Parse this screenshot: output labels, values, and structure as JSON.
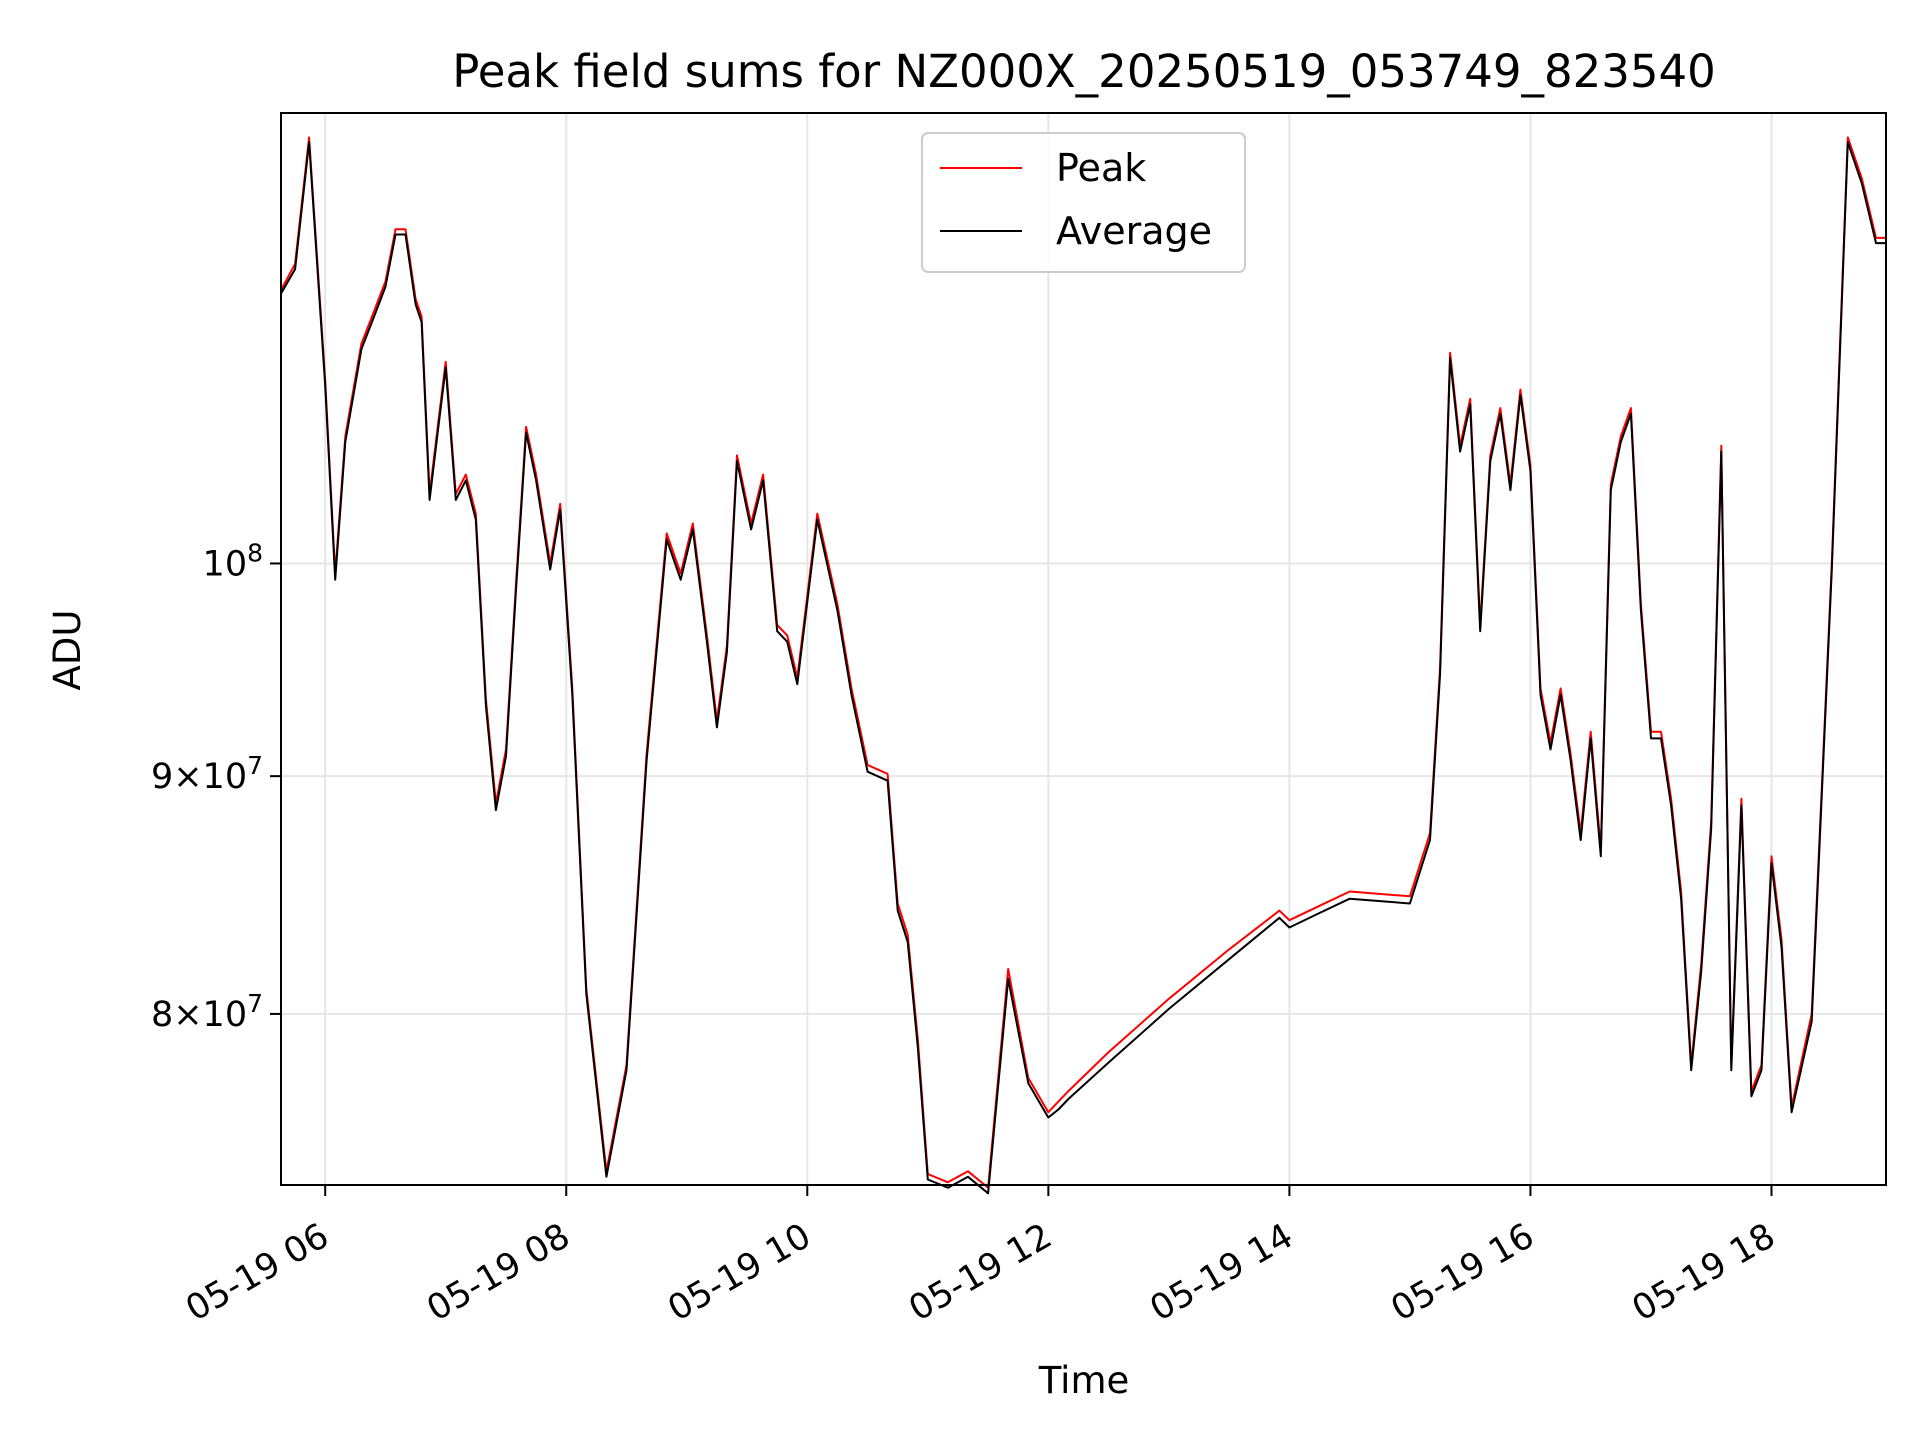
{
  "chart_data": {
    "type": "line",
    "title": "Peak field sums for NZ000X_20250519_053749_823540",
    "xlabel": "Time",
    "ylabel": "ADU",
    "x_scale": "time",
    "y_scale": "log",
    "xlim": [
      "2025-05-19 05:38",
      "2025-05-19 18:57"
    ],
    "ylim": [
      73500000,
      125000000
    ],
    "grid": true,
    "legend_position": "top-center",
    "x_tick_labels": [
      "05-19 06",
      "05-19 08",
      "05-19 10",
      "05-19 12",
      "05-19 14",
      "05-19 16",
      "05-19 18"
    ],
    "x_tick_values": [
      "2025-05-19 06:00",
      "2025-05-19 08:00",
      "2025-05-19 10:00",
      "2025-05-19 12:00",
      "2025-05-19 14:00",
      "2025-05-19 16:00",
      "2025-05-19 18:00"
    ],
    "y_ticks": [
      {
        "value": 80000000,
        "mantissa": "8",
        "exp": "7"
      },
      {
        "value": 90000000,
        "mantissa": "9",
        "exp": "7"
      },
      {
        "value": 100000000,
        "mantissa": "",
        "exp": "8"
      }
    ],
    "x": [
      "2025-05-19 05:38",
      "2025-05-19 05:45",
      "2025-05-19 05:52",
      "2025-05-19 06:00",
      "2025-05-19 06:05",
      "2025-05-19 06:10",
      "2025-05-19 06:18",
      "2025-05-19 06:25",
      "2025-05-19 06:30",
      "2025-05-19 06:35",
      "2025-05-19 06:40",
      "2025-05-19 06:45",
      "2025-05-19 06:48",
      "2025-05-19 06:52",
      "2025-05-19 06:56",
      "2025-05-19 07:00",
      "2025-05-19 07:05",
      "2025-05-19 07:10",
      "2025-05-19 07:15",
      "2025-05-19 07:20",
      "2025-05-19 07:25",
      "2025-05-19 07:30",
      "2025-05-19 07:35",
      "2025-05-19 07:40",
      "2025-05-19 07:45",
      "2025-05-19 07:52",
      "2025-05-19 07:57",
      "2025-05-19 08:03",
      "2025-05-19 08:10",
      "2025-05-19 08:20",
      "2025-05-19 08:30",
      "2025-05-19 08:40",
      "2025-05-19 08:50",
      "2025-05-19 08:57",
      "2025-05-19 09:03",
      "2025-05-19 09:10",
      "2025-05-19 09:15",
      "2025-05-19 09:20",
      "2025-05-19 09:25",
      "2025-05-19 09:32",
      "2025-05-19 09:38",
      "2025-05-19 09:45",
      "2025-05-19 09:50",
      "2025-05-19 09:55",
      "2025-05-19 10:05",
      "2025-05-19 10:15",
      "2025-05-19 10:22",
      "2025-05-19 10:30",
      "2025-05-19 10:35",
      "2025-05-19 10:40",
      "2025-05-19 10:45",
      "2025-05-19 10:50",
      "2025-05-19 10:55",
      "2025-05-19 11:00",
      "2025-05-19 11:10",
      "2025-05-19 11:20",
      "2025-05-19 11:30",
      "2025-05-19 11:40",
      "2025-05-19 11:50",
      "2025-05-19 12:00",
      "2025-05-19 12:05",
      "2025-05-19 12:10",
      "2025-05-19 12:30",
      "2025-05-19 13:00",
      "2025-05-19 13:30",
      "2025-05-19 13:55",
      "2025-05-19 14:00",
      "2025-05-19 14:15",
      "2025-05-19 14:30",
      "2025-05-19 15:00",
      "2025-05-19 15:10",
      "2025-05-19 15:15",
      "2025-05-19 15:20",
      "2025-05-19 15:25",
      "2025-05-19 15:30",
      "2025-05-19 15:35",
      "2025-05-19 15:40",
      "2025-05-19 15:45",
      "2025-05-19 15:50",
      "2025-05-19 15:55",
      "2025-05-19 16:00",
      "2025-05-19 16:05",
      "2025-05-19 16:10",
      "2025-05-19 16:15",
      "2025-05-19 16:20",
      "2025-05-19 16:25",
      "2025-05-19 16:30",
      "2025-05-19 16:35",
      "2025-05-19 16:40",
      "2025-05-19 16:45",
      "2025-05-19 16:50",
      "2025-05-19 16:55",
      "2025-05-19 17:00",
      "2025-05-19 17:05",
      "2025-05-19 17:10",
      "2025-05-19 17:15",
      "2025-05-19 17:20",
      "2025-05-19 17:25",
      "2025-05-19 17:30",
      "2025-05-19 17:35",
      "2025-05-19 17:40",
      "2025-05-19 17:45",
      "2025-05-19 17:50",
      "2025-05-19 17:55",
      "2025-05-19 18:00",
      "2025-05-19 18:05",
      "2025-05-19 18:10",
      "2025-05-19 18:20",
      "2025-05-19 18:30",
      "2025-05-19 18:38",
      "2025-05-19 18:45",
      "2025-05-19 18:52",
      "2025-05-19 18:57"
    ],
    "series": [
      {
        "name": "Peak",
        "color": "#ff0000",
        "values": [
          114500000,
          116000000,
          123500000,
          109500000,
          99500000,
          106500000,
          111500000,
          113500000,
          115000000,
          118000000,
          118000000,
          114000000,
          113000000,
          103500000,
          107000000,
          110500000,
          103500000,
          104500000,
          102500000,
          93500000,
          88800000,
          91200000,
          99000000,
          107000000,
          104500000,
          100000000,
          103000000,
          94000000,
          81000000,
          74000000,
          78000000,
          91000000,
          101500000,
          99500000,
          102000000,
          96500000,
          92500000,
          96000000,
          105500000,
          102000000,
          104500000,
          97000000,
          96500000,
          94500000,
          102500000,
          98000000,
          94000000,
          90500000,
          90300000,
          90100000,
          84500000,
          83200000,
          79000000,
          73900000,
          73600000,
          74000000,
          73400000,
          81800000,
          77500000,
          76200000,
          76600000,
          77000000,
          78500000,
          80600000,
          82600000,
          84200000,
          83800000,
          84400000,
          85000000,
          84800000,
          87500000,
          95000000,
          111000000,
          106000000,
          108500000,
          97000000,
          105500000,
          108000000,
          104000000,
          109000000,
          105000000,
          94000000,
          91500000,
          94000000,
          91000000,
          87500000,
          92000000,
          86800000,
          104000000,
          106500000,
          108000000,
          98000000,
          92000000,
          92000000,
          89000000,
          85000000,
          78000000,
          82000000,
          88000000,
          106000000,
          78000000,
          89000000,
          77000000,
          78000000,
          86500000,
          83000000,
          76400000,
          80000000,
          100000000,
          123500000,
          121000000,
          117500000,
          117500000
        ]
      },
      {
        "name": "Average",
        "color": "#000000",
        "values": [
          114300000,
          115700000,
          123200000,
          109200000,
          99200000,
          106200000,
          111200000,
          113200000,
          114700000,
          117700000,
          117700000,
          113700000,
          112700000,
          103200000,
          106700000,
          110200000,
          103200000,
          104200000,
          102200000,
          93200000,
          88500000,
          90900000,
          98700000,
          106700000,
          104200000,
          99700000,
          102700000,
          93700000,
          80800000,
          73800000,
          77800000,
          90700000,
          101200000,
          99200000,
          101700000,
          96200000,
          92200000,
          95700000,
          105200000,
          101700000,
          104200000,
          96700000,
          96200000,
          94200000,
          102200000,
          97700000,
          93700000,
          90200000,
          90000000,
          89800000,
          84200000,
          82900000,
          78700000,
          73700000,
          73400000,
          73800000,
          73200000,
          81400000,
          77300000,
          76000000,
          76300000,
          76700000,
          78100000,
          80200000,
          82200000,
          83900000,
          83500000,
          84100000,
          84700000,
          84500000,
          87200000,
          94700000,
          110700000,
          105700000,
          108200000,
          96700000,
          105200000,
          107700000,
          103700000,
          108700000,
          104700000,
          93700000,
          91200000,
          93700000,
          90700000,
          87200000,
          91700000,
          86500000,
          103700000,
          106200000,
          107700000,
          97700000,
          91700000,
          91700000,
          88700000,
          84700000,
          77800000,
          81700000,
          87700000,
          105700000,
          77800000,
          88700000,
          76800000,
          77800000,
          86200000,
          82700000,
          76200000,
          79700000,
          99700000,
          123200000,
          120700000,
          117200000,
          117200000
        ]
      }
    ]
  }
}
